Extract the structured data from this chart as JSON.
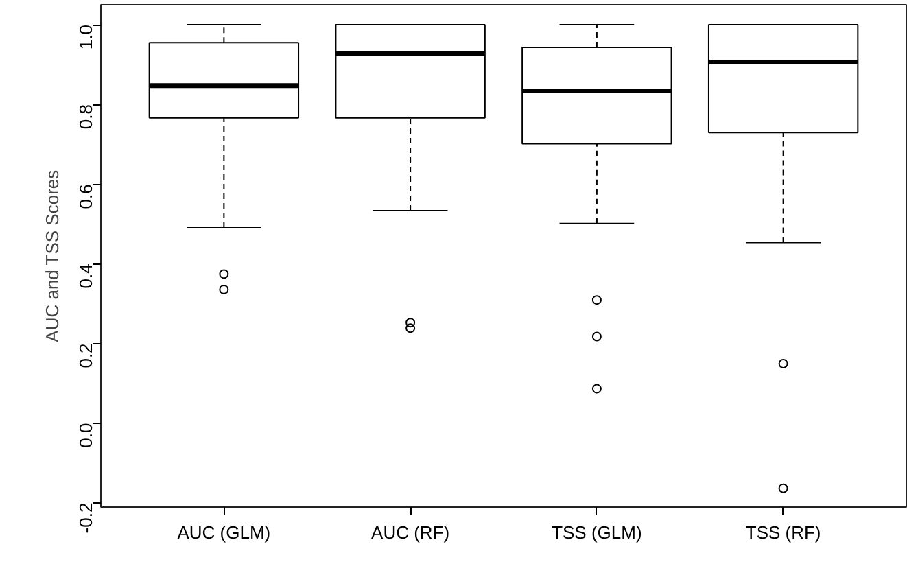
{
  "chart_data": {
    "type": "box",
    "ylabel": "AUC and TSS Scores",
    "categories": [
      "AUC (GLM)",
      "AUC (RF)",
      "TSS (GLM)",
      "TSS (RF)"
    ],
    "boxes": [
      {
        "low": 0.49,
        "q1": 0.766,
        "median": 0.847,
        "q3": 0.955,
        "high": 1.0,
        "outliers": [
          0.374,
          0.335
        ]
      },
      {
        "low": 0.533,
        "q1": 0.766,
        "median": 0.927,
        "q3": 1.0,
        "high": 1.0,
        "outliers": [
          0.252,
          0.238
        ]
      },
      {
        "low": 0.501,
        "q1": 0.701,
        "median": 0.834,
        "q3": 0.943,
        "high": 1.0,
        "outliers": [
          0.309,
          0.217,
          0.086
        ]
      },
      {
        "low": 0.453,
        "q1": 0.729,
        "median": 0.906,
        "q3": 1.0,
        "high": 1.0,
        "outliers": [
          0.149,
          -0.164
        ]
      }
    ],
    "ylim": [
      -0.211,
      1.05
    ],
    "yticks": [
      {
        "value": -0.2,
        "label": "-0.2"
      },
      {
        "value": 0.0,
        "label": "0.0"
      },
      {
        "value": 0.2,
        "label": "0.2"
      },
      {
        "value": 0.4,
        "label": "0.4"
      },
      {
        "value": 0.6,
        "label": "0.6"
      },
      {
        "value": 0.8,
        "label": "0.8"
      },
      {
        "value": 1.0,
        "label": "1.0"
      }
    ],
    "grid": false
  }
}
